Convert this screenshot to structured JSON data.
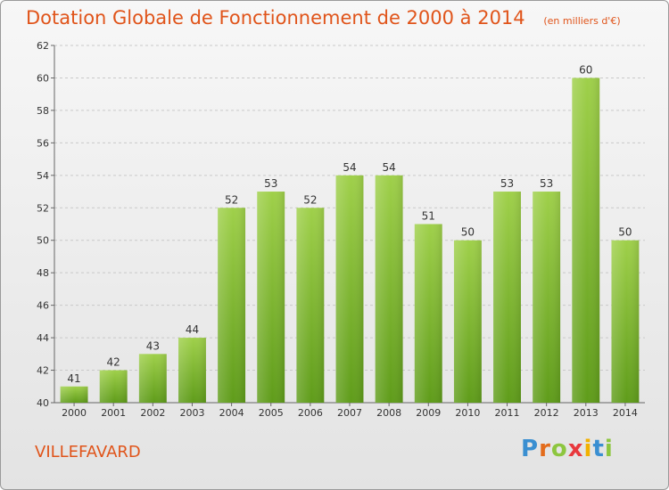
{
  "header": {
    "title": "Dotation Globale de Fonctionnement de 2000 à 2014",
    "subtitle": "(en milliers d'€)"
  },
  "footer": {
    "commune": "VILLEFAVARD",
    "logo": {
      "letters": [
        "P",
        "r",
        "o",
        "x",
        "i",
        "t",
        "i"
      ],
      "colors": [
        "#3a8fd1",
        "#e36c1c",
        "#8dc63f",
        "#e8383d",
        "#f2b100",
        "#3a8fd1",
        "#8dc63f"
      ]
    }
  },
  "chart_data": {
    "type": "bar",
    "categories": [
      "2000",
      "2001",
      "2002",
      "2003",
      "2004",
      "2005",
      "2006",
      "2007",
      "2008",
      "2009",
      "2010",
      "2011",
      "2012",
      "2013",
      "2014"
    ],
    "values": [
      41,
      42,
      43,
      44,
      52,
      53,
      52,
      54,
      54,
      51,
      50,
      53,
      53,
      60,
      50
    ],
    "ylim": [
      40,
      62
    ],
    "yticks": [
      40,
      42,
      44,
      46,
      48,
      50,
      52,
      54,
      56,
      58,
      60,
      62
    ],
    "grid": true,
    "bar_color_top": "#9fd04a",
    "bar_color_bottom": "#5f9c1a"
  }
}
